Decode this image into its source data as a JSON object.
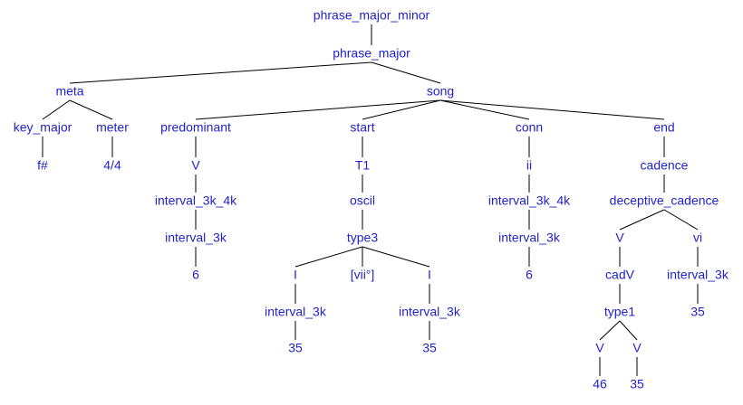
{
  "tree": {
    "colors": {
      "label": "#2222cc",
      "edge": "#000000"
    },
    "nodes": {
      "root": "phrase_major_minor",
      "pm": "phrase_major",
      "meta": "meta",
      "song": "song",
      "keymaj": "key_major",
      "meter": "meter",
      "fsharp": "f#",
      "m44": "4/4",
      "pred": "predominant",
      "start": "start",
      "conn": "conn",
      "end": "end",
      "pV": "V",
      "pI34": "interval_3k_4k",
      "pI3": "interval_3k",
      "p6": "6",
      "T1": "T1",
      "oscil": "oscil",
      "type3": "type3",
      "I1": "I",
      "vii": "[vii°]",
      "I2": "I",
      "I1int": "interval_3k",
      "I2int": "interval_3k",
      "I1v": "35",
      "I2v": "35",
      "ii": "ii",
      "cI34": "interval_3k_4k",
      "cI3": "interval_3k",
      "c6": "6",
      "cad": "cadence",
      "dec": "deceptive_cadence",
      "eV": "V",
      "vi": "vi",
      "cadV": "cadV",
      "viint": "interval_3k",
      "vi35": "35",
      "type1": "type1",
      "V1": "V",
      "V2": "V",
      "v46": "46",
      "v35": "35"
    }
  }
}
